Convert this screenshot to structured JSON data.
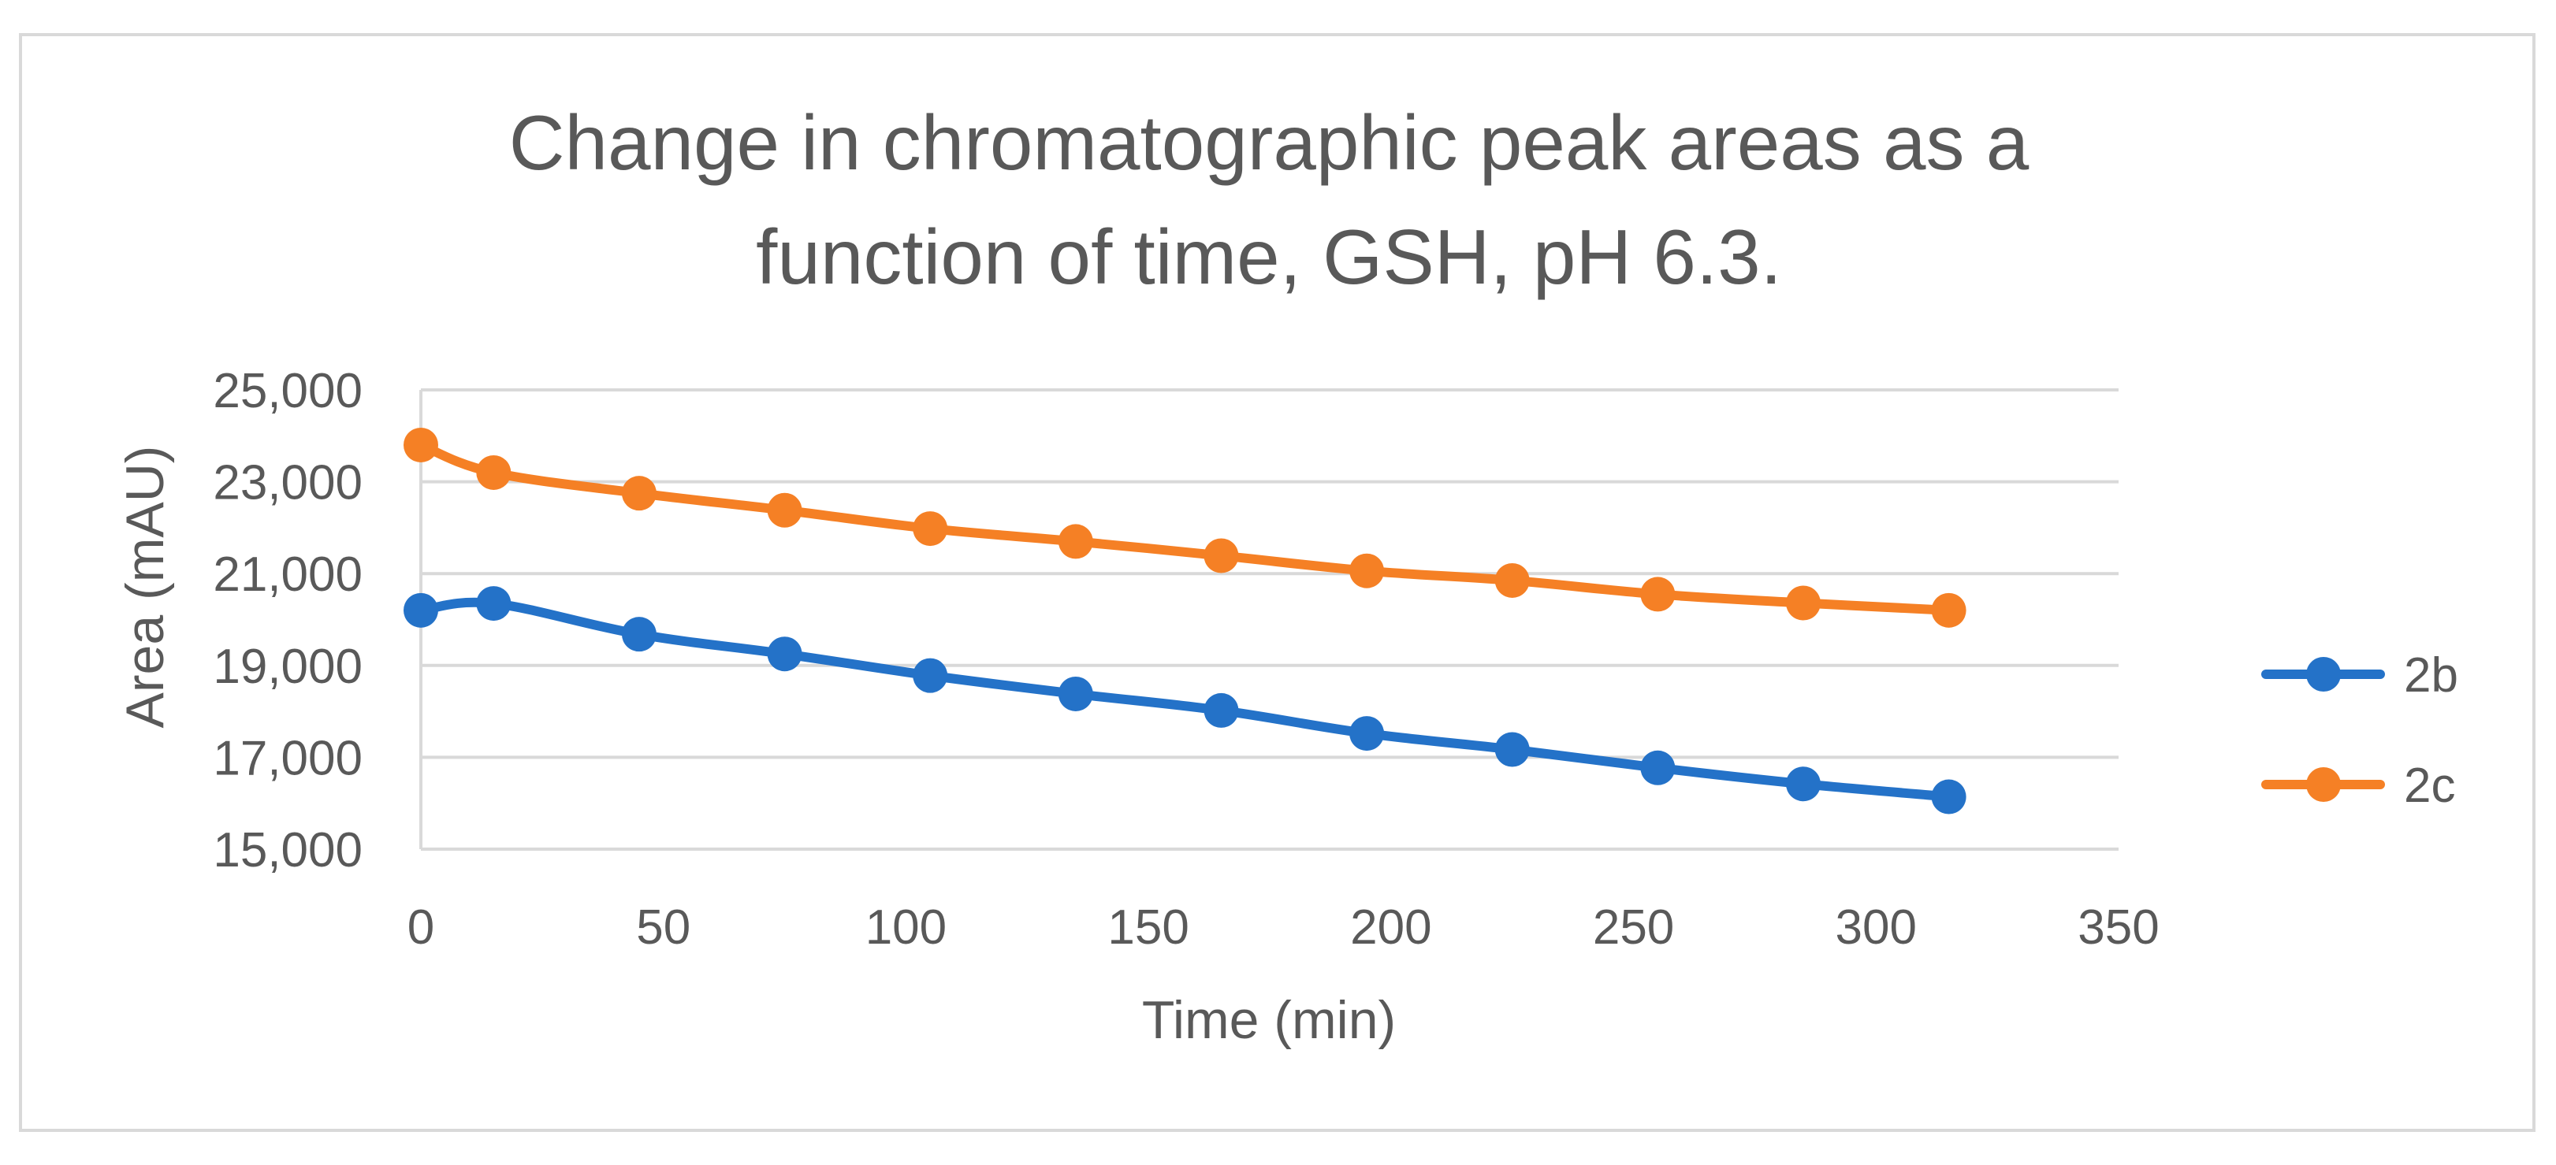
{
  "chart_data": {
    "type": "line",
    "title_lines": [
      "Change in chromatographic peak areas as a",
      "function of time, GSH, pH 6.3."
    ],
    "xlabel": "Time (min)",
    "ylabel": "Area (mAU)",
    "xlim": [
      0,
      350
    ],
    "ylim": [
      15000,
      25000
    ],
    "x_ticks": [
      0,
      50,
      100,
      150,
      200,
      250,
      300,
      350
    ],
    "x_tick_labels": [
      "0",
      "50",
      "100",
      "150",
      "200",
      "250",
      "300",
      "350"
    ],
    "y_ticks": [
      15000,
      17000,
      19000,
      21000,
      23000,
      25000
    ],
    "y_tick_labels": [
      "15,000",
      "17,000",
      "19,000",
      "21,000",
      "23,000",
      "25,000"
    ],
    "grid": true,
    "legend_position": "right",
    "series": [
      {
        "name": "2b",
        "color": "#2472C8",
        "x": [
          0,
          15,
          45,
          75,
          105,
          135,
          165,
          195,
          225,
          255,
          285,
          315
        ],
        "values": [
          20200,
          20350,
          19680,
          19250,
          18780,
          18380,
          18020,
          17520,
          17170,
          16770,
          16420,
          16140
        ]
      },
      {
        "name": "2c",
        "color": "#F58025",
        "x": [
          0,
          15,
          45,
          75,
          105,
          135,
          165,
          195,
          225,
          255,
          285,
          315
        ],
        "values": [
          23800,
          23200,
          22750,
          22380,
          21980,
          21700,
          21390,
          21060,
          20850,
          20550,
          20360,
          20200
        ]
      }
    ]
  }
}
